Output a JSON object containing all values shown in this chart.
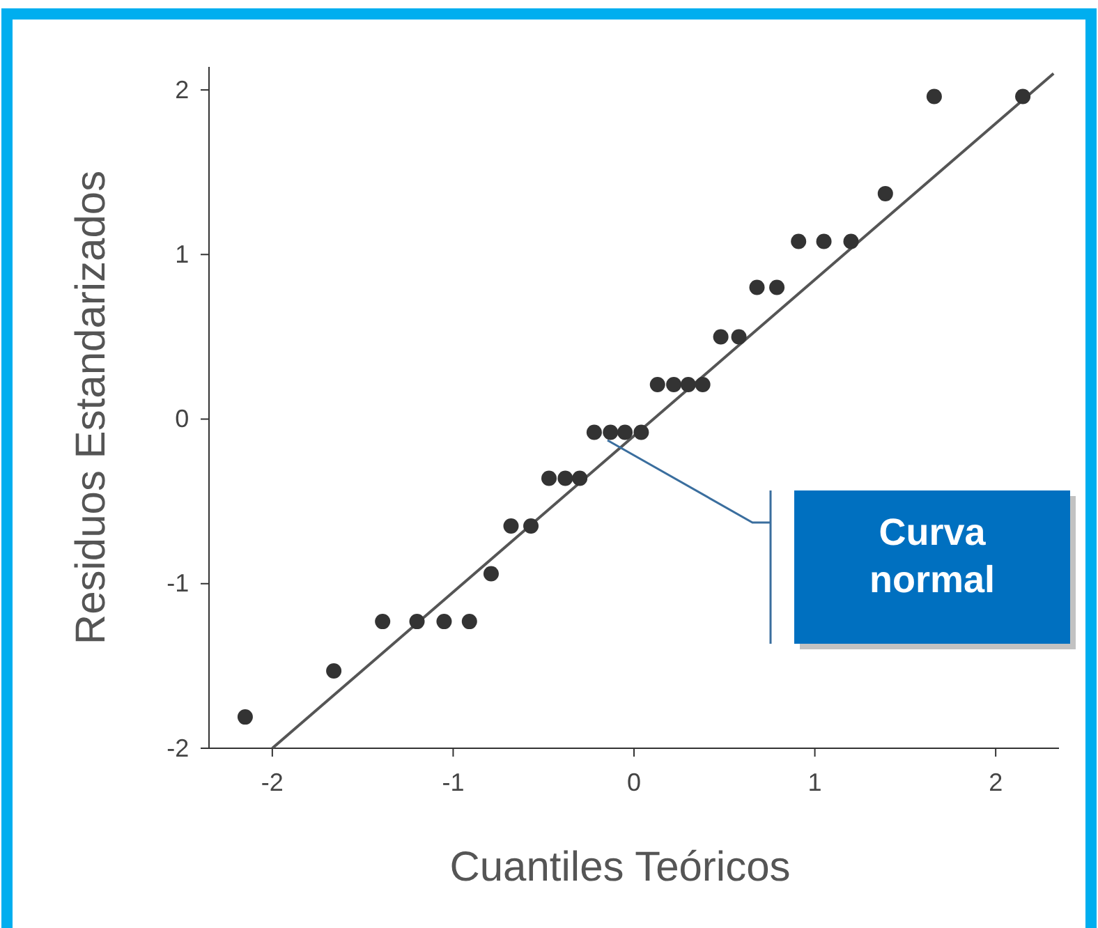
{
  "chart_data": {
    "type": "scatter",
    "xlabel": "Cuantiles Teóricos",
    "ylabel": "Residuos Estandarizados",
    "xlim": [
      -2.35,
      2.35
    ],
    "ylim": [
      -2,
      2.14
    ],
    "xticks": [
      -2,
      -1,
      0,
      1,
      2
    ],
    "yticks": [
      -2,
      -1,
      0,
      1,
      2
    ],
    "grid": false,
    "series": [
      {
        "marker": "circle",
        "color": "#333333",
        "x": [
          -2.15,
          -1.66,
          -1.39,
          -1.2,
          -1.05,
          -0.91,
          -0.79,
          -0.68,
          -0.57,
          -0.47,
          -0.38,
          -0.3,
          -0.22,
          -0.13,
          -0.05,
          0.04,
          0.13,
          0.22,
          0.3,
          0.38,
          0.48,
          0.58,
          0.68,
          0.79,
          0.91,
          1.05,
          1.2,
          1.39,
          1.66,
          2.15
        ],
        "values": [
          -1.81,
          -1.53,
          -1.23,
          -1.23,
          -1.23,
          -1.23,
          -0.94,
          -0.65,
          -0.65,
          -0.36,
          -0.36,
          -0.36,
          -0.08,
          -0.08,
          -0.08,
          -0.08,
          0.21,
          0.21,
          0.21,
          0.21,
          0.5,
          0.5,
          0.8,
          0.8,
          1.08,
          1.08,
          1.08,
          1.37,
          1.96,
          1.96
        ]
      },
      {
        "type": "line",
        "color": "#555555",
        "x": [
          -2,
          2.32
        ],
        "values": [
          -2,
          2.1
        ]
      }
    ],
    "annotations": [
      "Curva normal"
    ]
  }
}
